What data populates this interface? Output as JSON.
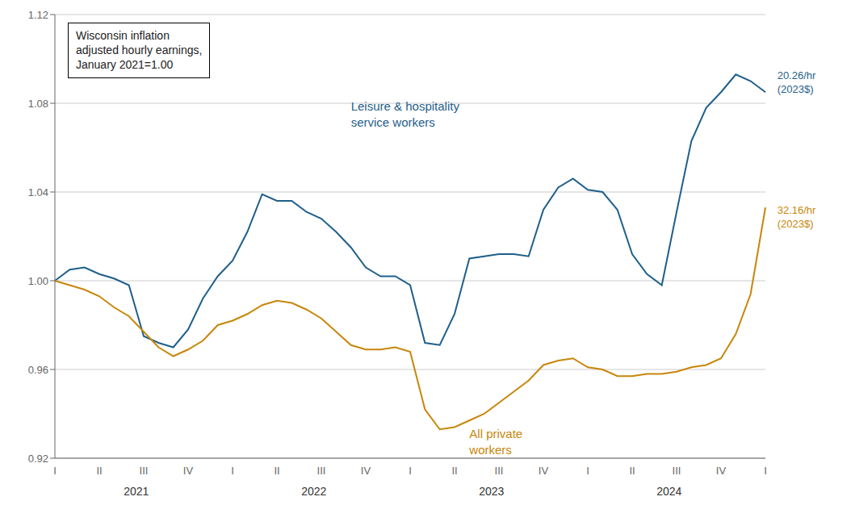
{
  "chart_data": {
    "type": "line",
    "title": "Wisconsin inflation\nadjusted hourly earnings,\nJanuary 2021=1.00",
    "categories": [
      "I",
      null,
      null,
      "II",
      null,
      null,
      "III",
      null,
      null,
      "IV",
      null,
      null,
      "I",
      null,
      null,
      "II",
      null,
      null,
      "III",
      null,
      null,
      "IV",
      null,
      null,
      "I",
      null,
      null,
      "II",
      null,
      null,
      "III",
      null,
      null,
      "IV",
      null,
      null,
      "I",
      null,
      null,
      "II",
      null,
      null,
      "III",
      null,
      null,
      "IV",
      null,
      null,
      "I"
    ],
    "series": [
      {
        "name": "Leisure & hospitality\nservice workers",
        "color": "#1f5f8b",
        "values": [
          1.0,
          1.005,
          1.006,
          1.003,
          1.001,
          0.998,
          0.975,
          0.972,
          0.97,
          0.978,
          0.992,
          1.002,
          1.009,
          1.022,
          1.039,
          1.036,
          1.036,
          1.031,
          1.028,
          1.022,
          1.015,
          1.006,
          1.002,
          1.002,
          0.998,
          0.972,
          0.971,
          0.985,
          1.01,
          1.011,
          1.012,
          1.012,
          1.011,
          1.032,
          1.042,
          1.046,
          1.041,
          1.04,
          1.032,
          1.012,
          1.003,
          0.998,
          1.031,
          1.063,
          1.078,
          1.085,
          1.093,
          1.09,
          1.085
        ]
      },
      {
        "name": "All private\nworkers",
        "color": "#c8860a",
        "values": [
          1.0,
          0.998,
          0.996,
          0.993,
          0.988,
          0.984,
          0.977,
          0.97,
          0.966,
          0.969,
          0.973,
          0.98,
          0.982,
          0.985,
          0.989,
          0.991,
          0.99,
          0.987,
          0.983,
          0.977,
          0.971,
          0.969,
          0.969,
          0.97,
          0.968,
          0.942,
          0.933,
          0.934,
          0.937,
          0.94,
          0.945,
          0.95,
          0.955,
          0.962,
          0.964,
          0.965,
          0.961,
          0.96,
          0.957,
          0.957,
          0.958,
          0.958,
          0.959,
          0.961,
          0.962,
          0.965,
          0.976,
          0.994,
          1.033
        ]
      }
    ],
    "ylim": [
      0.92,
      1.12
    ],
    "yticks": [
      0.92,
      0.96,
      {
        "value": 1.0,
        "label": "1.00"
      },
      1.04,
      1.08,
      1.12
    ],
    "grid": true,
    "annotations": [
      {
        "text": "2021"
      },
      {
        "text": "2022"
      },
      {
        "text": "2023"
      },
      {
        "text": "2024"
      },
      {
        "text": "20.26/hr\n(2023$)",
        "series": "Leisure & hospitality\nservice workers"
      },
      {
        "text": "32.16/hr\n(2023$)",
        "series": "All private\nworkers"
      }
    ]
  }
}
